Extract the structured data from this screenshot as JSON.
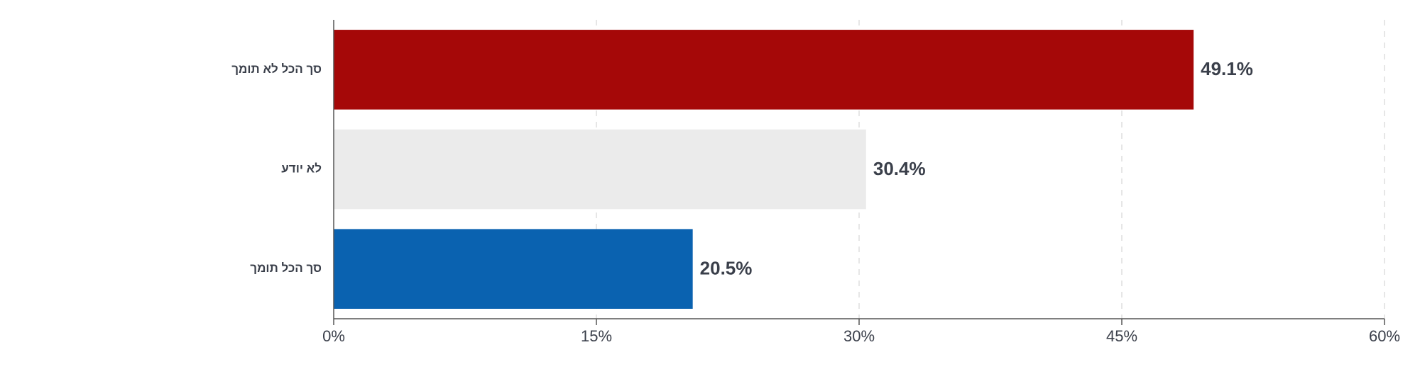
{
  "chart_data": {
    "type": "barh",
    "categories": [
      "סך הכל לא תומך",
      "לא יודע",
      "סך הכל תומך"
    ],
    "values": [
      49.1,
      30.4,
      20.5
    ],
    "value_labels": [
      "49.1%",
      "30.4%",
      "20.5%"
    ],
    "colors": [
      "#a50808",
      "#ebebeb",
      "#0a62b0"
    ],
    "xlim": [
      0,
      60
    ],
    "xticks": [
      {
        "value": 0,
        "label": "0%"
      },
      {
        "value": 15,
        "label": "15%"
      },
      {
        "value": 30,
        "label": "30%"
      },
      {
        "value": 45,
        "label": "45%"
      },
      {
        "value": 60,
        "label": "60%"
      }
    ],
    "grid": true
  }
}
